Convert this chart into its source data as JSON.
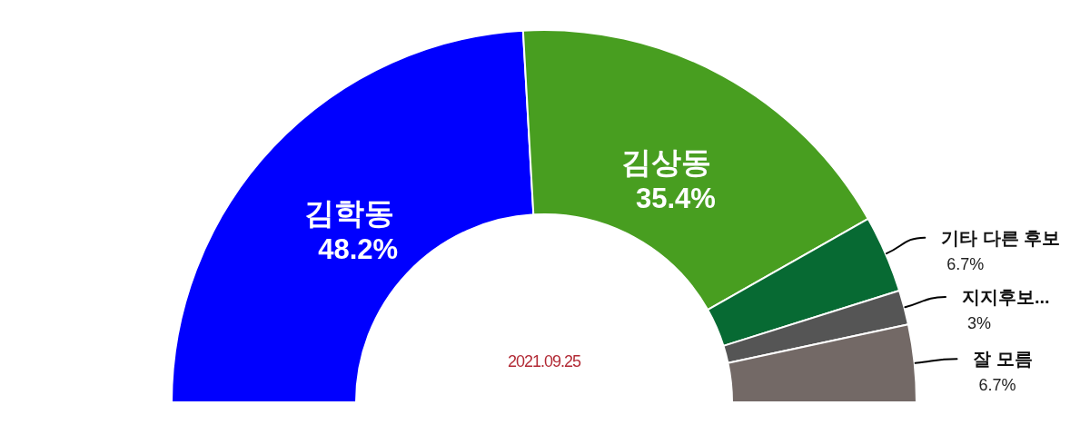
{
  "chart_data": {
    "type": "donut",
    "categories": [
      "김학동",
      "김상동",
      "기타 다른 후보",
      "지지후보...",
      "잘 모름"
    ],
    "values": [
      48.2,
      35.4,
      6.7,
      3,
      6.7
    ],
    "colors": [
      "#0000ff",
      "#489e20",
      "#076a33",
      "#555555",
      "#736966"
    ],
    "value_labels": [
      "48.2%",
      "35.4%",
      "6.7%",
      "3%",
      "6.7%"
    ],
    "annotations": [
      "2021.09.25"
    ]
  }
}
